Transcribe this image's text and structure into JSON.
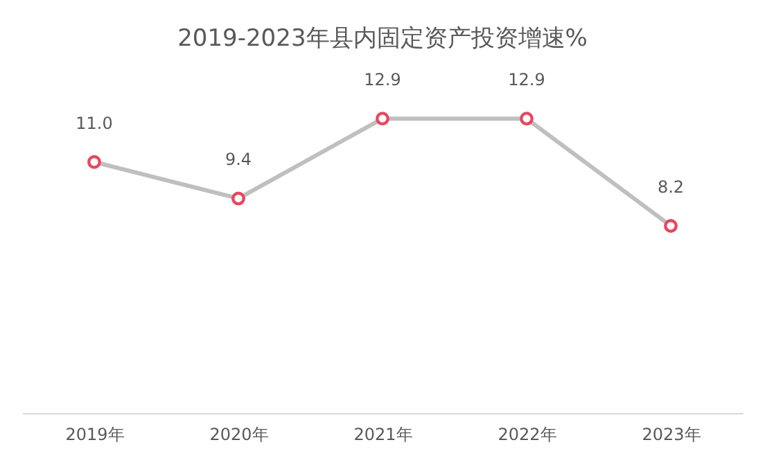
{
  "chart_data": {
    "type": "line",
    "title": "2019-2023年县内固定资产投资增速%",
    "categories": [
      "2019年",
      "2020年",
      "2021年",
      "2022年",
      "2023年"
    ],
    "series": [
      {
        "color": "#bfbfbf",
        "values": [
          11.0,
          9.4,
          12.9,
          12.9,
          8.2
        ],
        "value_labels": [
          "11.0",
          "9.4",
          "12.9",
          "12.9",
          "8.2"
        ]
      }
    ],
    "colors": [
      "#e8475f",
      "#e8475f",
      "#e8475f",
      "#e8475f",
      "#e8475f"
    ],
    "marker": "circle",
    "line_style": "solid",
    "tick_labels": "x"
  }
}
